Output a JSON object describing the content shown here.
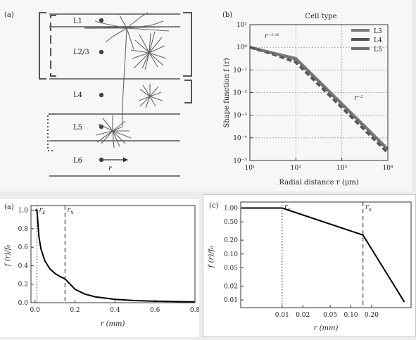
{
  "panels": {
    "neuron": {
      "label": "(a)",
      "layers": [
        "L1",
        "L2/3",
        "L4",
        "L5",
        "L6"
      ],
      "radial_symbol": "r"
    },
    "bottom_left_label": "(a)",
    "bottom_right_label": "(c)"
  },
  "chart_data": [
    {
      "id": "shape-function",
      "panel_label": "(b)",
      "type": "line",
      "title": "Cell type",
      "xlabel": "Radial distance r (μm)",
      "ylabel": "Shape function f (r)",
      "xscale": "log",
      "yscale": "log",
      "xlim": [
        10,
        10000
      ],
      "ylim": [
        1e-05,
        10
      ],
      "xtick_values": [
        10,
        100,
        1000,
        10000
      ],
      "xtick_labels": [
        "10¹",
        "10²",
        "10³",
        "10⁴"
      ],
      "ytick_values": [
        1e-05,
        0.0001,
        0.001,
        0.01,
        0.1,
        1,
        10
      ],
      "ytick_labels": [
        "10⁻⁵",
        "10⁻⁴",
        "10⁻³",
        "10⁻²",
        "10⁻¹",
        "10⁰",
        "10¹"
      ],
      "grid": true,
      "legend_position": "top-right",
      "annotations": [
        "r⁻¹ᐟ²",
        "r⁻²"
      ],
      "series": [
        {
          "name": "L3",
          "color": "#7a7a7a",
          "x": [
            10,
            30,
            100,
            1000,
            10000
          ],
          "y": [
            1.0,
            0.58,
            0.32,
            0.0032,
            3.2e-05
          ]
        },
        {
          "name": "L4",
          "color": "#555555",
          "x": [
            10,
            30,
            100,
            1000,
            10000
          ],
          "y": [
            1.0,
            0.52,
            0.22,
            0.0022,
            2.2e-05
          ]
        },
        {
          "name": "L5",
          "color": "#6e6e6e",
          "x": [
            10,
            30,
            100,
            1000,
            10000
          ],
          "y": [
            1.0,
            0.55,
            0.28,
            0.0028,
            2.8e-05
          ]
        }
      ]
    },
    {
      "id": "linear-shape",
      "type": "line",
      "xlabel": "r (mm)",
      "ylabel": "f (r)/f₀",
      "xlim": [
        -0.02,
        0.8
      ],
      "ylim": [
        0,
        1.05
      ],
      "xtick_values": [
        0.0,
        0.2,
        0.4,
        0.6,
        0.8
      ],
      "xtick_labels": [
        "0.0",
        "0.2",
        "0.4",
        "0.6",
        "0.8"
      ],
      "ytick_values": [
        0.0,
        0.2,
        0.4,
        0.6,
        0.8,
        1.0
      ],
      "ytick_labels": [
        "0.0",
        "0.2",
        "0.4",
        "0.6",
        "0.8",
        "1.0"
      ],
      "vlines": [
        {
          "x": 0.01,
          "label": "r_ε",
          "style": "dotted"
        },
        {
          "x": 0.15,
          "label": "r_x",
          "style": "dashed"
        }
      ],
      "series": [
        {
          "x": [
            0.0,
            0.01,
            0.02,
            0.03,
            0.05,
            0.075,
            0.1,
            0.125,
            0.15,
            0.2,
            0.25,
            0.3,
            0.4,
            0.5,
            0.6,
            0.7,
            0.8
          ],
          "y": [
            1.0,
            1.0,
            0.71,
            0.58,
            0.45,
            0.365,
            0.316,
            0.283,
            0.258,
            0.145,
            0.093,
            0.064,
            0.036,
            0.023,
            0.016,
            0.012,
            0.009
          ]
        }
      ]
    },
    {
      "id": "log-shape",
      "type": "line",
      "xlabel": "r (mm)",
      "ylabel": "f (r)/f₀",
      "xscale": "log",
      "yscale": "log",
      "xlim": [
        0.0025,
        0.75
      ],
      "ylim": [
        0.0068,
        1.35
      ],
      "xtick_values": [
        0.01,
        0.02,
        0.05,
        0.1,
        0.2
      ],
      "xtick_labels": [
        "0.01",
        "0.02",
        "0.05",
        "0.10",
        "0.20"
      ],
      "ytick_values": [
        0.01,
        0.02,
        0.05,
        0.1,
        0.2,
        0.5,
        1.0
      ],
      "ytick_labels": [
        "0.01",
        "0.02",
        "0.05",
        "0.10",
        "0.20",
        "0.50",
        "1.00"
      ],
      "vlines": [
        {
          "x": 0.01,
          "label": "r_ε",
          "style": "dotted"
        },
        {
          "x": 0.15,
          "label": "r_x",
          "style": "dashed"
        }
      ],
      "series": [
        {
          "x": [
            0.0025,
            0.01,
            0.15,
            0.6
          ],
          "y": [
            1.0,
            1.0,
            0.258,
            0.009
          ]
        }
      ]
    }
  ]
}
